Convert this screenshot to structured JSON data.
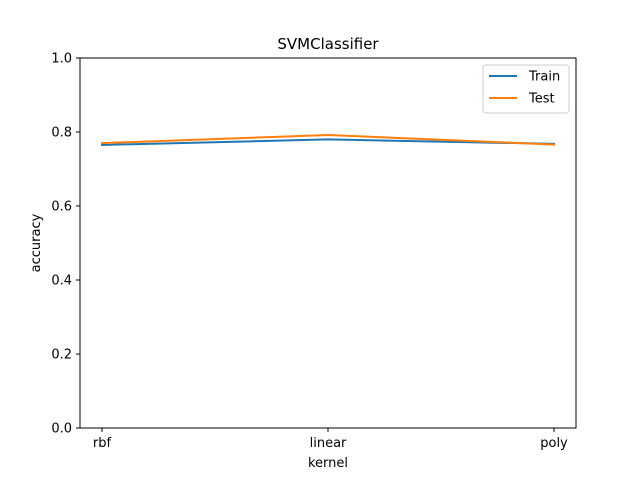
{
  "chart_data": {
    "type": "line",
    "title": "SVMClassifier",
    "xlabel": "kernel",
    "ylabel": "accuracy",
    "categories": [
      "rbf",
      "linear",
      "poly"
    ],
    "ylim": [
      0.0,
      1.0
    ],
    "yticks": [
      "0.0",
      "0.2",
      "0.4",
      "0.6",
      "0.8",
      "1.0"
    ],
    "grid": false,
    "legend_position": "top-right",
    "series": [
      {
        "name": "Train",
        "color": "#1f77b4",
        "values": [
          0.765,
          0.78,
          0.768
        ]
      },
      {
        "name": "Test",
        "color": "#ff7f0e",
        "values": [
          0.77,
          0.792,
          0.766
        ]
      }
    ]
  }
}
